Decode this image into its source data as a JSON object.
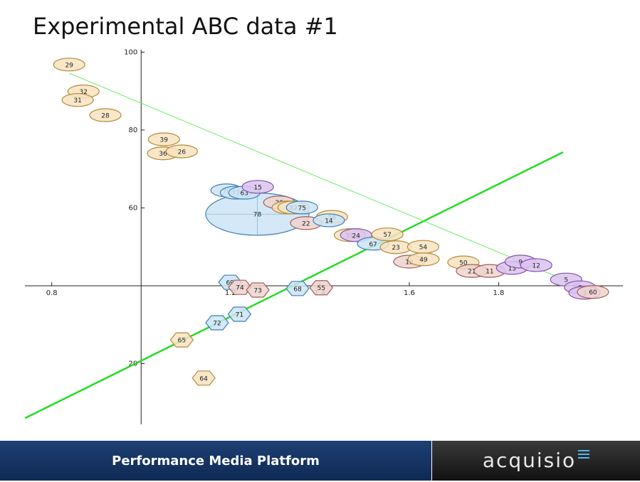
{
  "chart_data": {
    "type": "bubble",
    "title": "Experimental ABC data #1",
    "xlim": [
      0.732,
      2.078
    ],
    "ylim": [
      4.4,
      100.6
    ],
    "origin": [
      1,
      40
    ],
    "xticks": [
      0.8,
      1.2,
      1.4,
      1.6,
      1.8
    ],
    "yticks": [
      20,
      60,
      80,
      100
    ],
    "points": [
      {
        "label": "29",
        "x": 0.839,
        "y": 96.8,
        "size": 1,
        "color": "orange",
        "shape": "ellipse"
      },
      {
        "label": "32",
        "x": 0.871,
        "y": 89.9,
        "size": 1,
        "color": "orange",
        "shape": "ellipse"
      },
      {
        "label": "31",
        "x": 0.858,
        "y": 87.7,
        "size": 1,
        "color": "orange",
        "shape": "ellipse"
      },
      {
        "label": "28",
        "x": 0.92,
        "y": 83.8,
        "size": 1,
        "color": "orange",
        "shape": "ellipse"
      },
      {
        "label": "39",
        "x": 1.051,
        "y": 77.6,
        "size": 1,
        "color": "orange",
        "shape": "ellipse"
      },
      {
        "label": "36",
        "x": 1.049,
        "y": 74.0,
        "size": 1,
        "color": "orange",
        "shape": "ellipse"
      },
      {
        "label": "26",
        "x": 1.091,
        "y": 74.5,
        "size": 1,
        "color": "orange",
        "shape": "ellipse"
      },
      {
        "label": "78",
        "x": 1.26,
        "y": 58.4,
        "size": 3.3,
        "color": "blue",
        "shape": "ellipse"
      },
      {
        "label": "70",
        "x": 1.191,
        "y": 64.5,
        "size": 1,
        "color": "blue",
        "shape": "ellipse"
      },
      {
        "label": "77",
        "x": 1.212,
        "y": 63.9,
        "size": 1,
        "color": "blue",
        "shape": "ellipse"
      },
      {
        "label": "63",
        "x": 1.231,
        "y": 63.9,
        "size": 1,
        "color": "blue",
        "shape": "ellipse"
      },
      {
        "label": "15",
        "x": 1.261,
        "y": 65.4,
        "size": 1,
        "color": "purple",
        "shape": "ellipse"
      },
      {
        "label": "20",
        "x": 1.309,
        "y": 61.4,
        "size": 1,
        "color": "pink",
        "shape": "ellipse"
      },
      {
        "label": "2",
        "x": 1.328,
        "y": 60.1,
        "size": 1,
        "color": "orange",
        "shape": "ellipse"
      },
      {
        "label": "82",
        "x": 1.341,
        "y": 60.1,
        "size": 1,
        "color": "orange",
        "shape": "ellipse"
      },
      {
        "label": "75",
        "x": 1.36,
        "y": 60.1,
        "size": 1,
        "color": "blue",
        "shape": "ellipse"
      },
      {
        "label": "22",
        "x": 1.369,
        "y": 56.1,
        "size": 1,
        "color": "pink",
        "shape": "ellipse"
      },
      {
        "label": "58",
        "x": 1.427,
        "y": 57.7,
        "size": 1,
        "color": "orange",
        "shape": "ellipse"
      },
      {
        "label": "14",
        "x": 1.42,
        "y": 56.8,
        "size": 1,
        "color": "blue",
        "shape": "ellipse"
      },
      {
        "label": "51",
        "x": 1.467,
        "y": 53.0,
        "size": 1,
        "color": "orange",
        "shape": "ellipse"
      },
      {
        "label": "24",
        "x": 1.481,
        "y": 53.0,
        "size": 1,
        "color": "purple",
        "shape": "ellipse"
      },
      {
        "label": "67",
        "x": 1.519,
        "y": 50.8,
        "size": 1,
        "color": "blue",
        "shape": "ellipse"
      },
      {
        "label": "57",
        "x": 1.551,
        "y": 53.2,
        "size": 1,
        "color": "orange",
        "shape": "ellipse"
      },
      {
        "label": "23",
        "x": 1.57,
        "y": 49.9,
        "size": 1,
        "color": "orange",
        "shape": "ellipse"
      },
      {
        "label": "54",
        "x": 1.631,
        "y": 50.0,
        "size": 1,
        "color": "orange",
        "shape": "ellipse"
      },
      {
        "label": "19",
        "x": 1.6,
        "y": 46.2,
        "size": 1,
        "color": "pink",
        "shape": "ellipse"
      },
      {
        "label": "49",
        "x": 1.632,
        "y": 46.8,
        "size": 1,
        "color": "orange",
        "shape": "ellipse"
      },
      {
        "label": "50",
        "x": 1.721,
        "y": 46.0,
        "size": 1,
        "color": "orange",
        "shape": "ellipse"
      },
      {
        "label": "21",
        "x": 1.74,
        "y": 43.8,
        "size": 1,
        "color": "pink",
        "shape": "ellipse"
      },
      {
        "label": "11",
        "x": 1.78,
        "y": 43.8,
        "size": 1,
        "color": "pink",
        "shape": "ellipse"
      },
      {
        "label": "13",
        "x": 1.83,
        "y": 44.6,
        "size": 1,
        "color": "purple",
        "shape": "ellipse"
      },
      {
        "label": "9",
        "x": 1.849,
        "y": 46.2,
        "size": 1,
        "color": "purple",
        "shape": "ellipse"
      },
      {
        "label": "12",
        "x": 1.884,
        "y": 45.3,
        "size": 1,
        "color": "purple",
        "shape": "ellipse"
      },
      {
        "label": "5",
        "x": 1.951,
        "y": 41.6,
        "size": 1,
        "color": "purple",
        "shape": "ellipse"
      },
      {
        "label": "8",
        "x": 1.982,
        "y": 39.6,
        "size": 1,
        "color": "purple",
        "shape": "ellipse"
      },
      {
        "label": "3",
        "x": 1.992,
        "y": 38.2,
        "size": 1,
        "color": "purple",
        "shape": "ellipse"
      },
      {
        "label": "60",
        "x": 2.011,
        "y": 38.4,
        "size": 1,
        "color": "pink",
        "shape": "ellipse"
      },
      {
        "label": "69",
        "x": 1.199,
        "y": 40.9,
        "color": "blue",
        "shape": "hexagon"
      },
      {
        "label": "74",
        "x": 1.221,
        "y": 39.6,
        "color": "pink",
        "shape": "hexagon"
      },
      {
        "label": "73",
        "x": 1.261,
        "y": 38.9,
        "color": "pink",
        "shape": "hexagon"
      },
      {
        "label": "68",
        "x": 1.35,
        "y": 39.3,
        "color": "blue",
        "shape": "hexagon"
      },
      {
        "label": "55",
        "x": 1.403,
        "y": 39.5,
        "color": "pink",
        "shape": "hexagon"
      },
      {
        "label": "71",
        "x": 1.22,
        "y": 32.7,
        "color": "blue",
        "shape": "hexagon"
      },
      {
        "label": "72",
        "x": 1.17,
        "y": 30.5,
        "color": "blue",
        "shape": "hexagon"
      },
      {
        "label": "65",
        "x": 1.091,
        "y": 26.1,
        "color": "orange",
        "shape": "hexagon"
      },
      {
        "label": "64",
        "x": 1.14,
        "y": 16.3,
        "color": "orange",
        "shape": "hexagon"
      }
    ],
    "lines": [
      {
        "x": [
          0.74,
          1.944
        ],
        "y": [
          6.0,
          74.3
        ],
        "color": "#22dd22",
        "width": 2.5
      },
      {
        "x": [
          0.839,
          1.99
        ],
        "y": [
          94.6,
          39.5
        ],
        "color": "#66ee66",
        "width": 1
      }
    ]
  },
  "footer": {
    "tagline": "Performance Media Platform",
    "logo": "acquisio"
  }
}
